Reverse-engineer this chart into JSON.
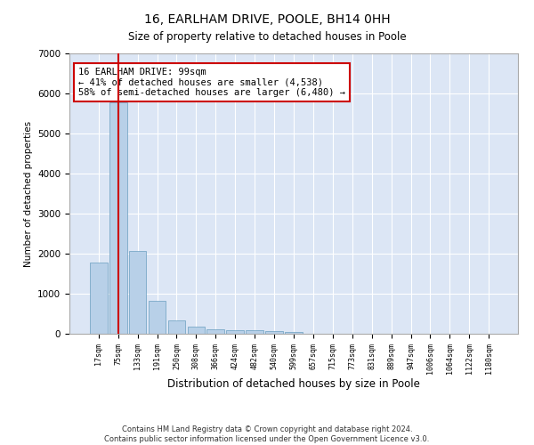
{
  "title": "16, EARLHAM DRIVE, POOLE, BH14 0HH",
  "subtitle": "Size of property relative to detached houses in Poole",
  "xlabel": "Distribution of detached houses by size in Poole",
  "ylabel": "Number of detached properties",
  "bar_color": "#b8d0e8",
  "bar_edge_color": "#6a9ec0",
  "background_color": "#dce6f5",
  "grid_color": "#ffffff",
  "categories": [
    "17sqm",
    "75sqm",
    "133sqm",
    "191sqm",
    "250sqm",
    "308sqm",
    "366sqm",
    "424sqm",
    "482sqm",
    "540sqm",
    "599sqm",
    "657sqm",
    "715sqm",
    "773sqm",
    "831sqm",
    "889sqm",
    "947sqm",
    "1006sqm",
    "1064sqm",
    "1122sqm",
    "1180sqm"
  ],
  "values": [
    1780,
    5780,
    2060,
    820,
    340,
    185,
    115,
    100,
    95,
    70,
    50,
    0,
    0,
    0,
    0,
    0,
    0,
    0,
    0,
    0,
    0
  ],
  "property_bin_index": 1,
  "vline_color": "#cc0000",
  "annotation_text": "16 EARLHAM DRIVE: 99sqm\n← 41% of detached houses are smaller (4,538)\n58% of semi-detached houses are larger (6,480) →",
  "annotation_box_color": "#cc0000",
  "ylim": [
    0,
    7000
  ],
  "yticks": [
    0,
    1000,
    2000,
    3000,
    4000,
    5000,
    6000,
    7000
  ],
  "footer_line1": "Contains HM Land Registry data © Crown copyright and database right 2024.",
  "footer_line2": "Contains public sector information licensed under the Open Government Licence v3.0."
}
